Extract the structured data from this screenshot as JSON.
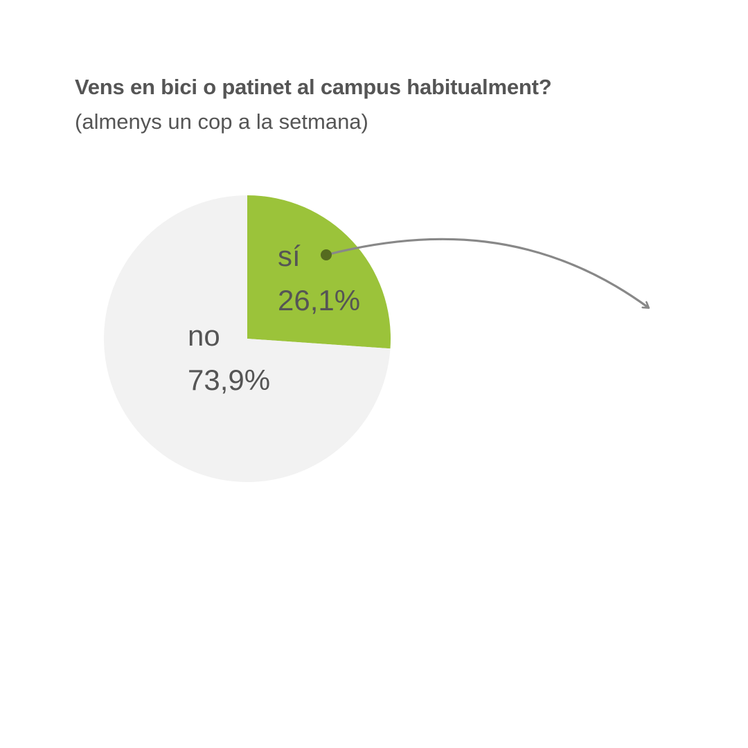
{
  "title": "Vens en bici o patinet al campus habitualment?",
  "subtitle": "(almenys un cop a la setmana)",
  "chart_data": {
    "type": "pie",
    "title": "Vens en bici o patinet al campus habitualment?",
    "subtitle": "(almenys un cop a la setmana)",
    "slices": [
      {
        "label": "sí",
        "value": 26.1,
        "value_label": "26,1%",
        "color": "#9bc33a"
      },
      {
        "label": "no",
        "value": 73.9,
        "value_label": "73,9%",
        "color": "#f2f2f2"
      }
    ],
    "start": "12 o'clock, clockwise",
    "legend": "none",
    "annotation": "arrow from the sí slice pointing right"
  },
  "colors": {
    "text": "#555555",
    "accent": "#9bc33a",
    "background_slice": "#f2f2f2",
    "arrow": "#888888",
    "dot": "#556b1f"
  }
}
